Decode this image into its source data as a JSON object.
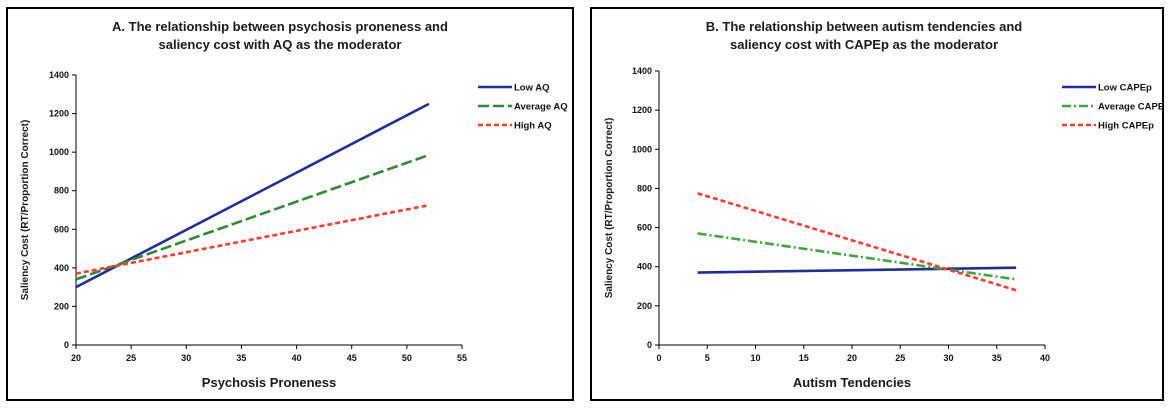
{
  "chart_data": [
    {
      "type": "line",
      "title": "A. The relationship between psychosis proneness and saliency cost with AQ as the moderator",
      "title_lines": [
        "A. The relationship between psychosis proneness and",
        "saliency cost with AQ as the moderator"
      ],
      "xlabel": "Psychosis Proneness",
      "ylabel": "Saliency Cost (RT/Proportion Correct)",
      "xlim": [
        20,
        55
      ],
      "ylim": [
        0,
        1400
      ],
      "xticks": [
        20,
        25,
        30,
        35,
        40,
        45,
        50,
        55
      ],
      "yticks": [
        0,
        200,
        400,
        600,
        800,
        1000,
        1200,
        1400
      ],
      "legend_position": "top-right",
      "series": [
        {
          "name": "Low AQ",
          "color": "#1f2e9c",
          "dash": "solid",
          "x": [
            20,
            52
          ],
          "y": [
            300,
            1250
          ]
        },
        {
          "name": "Average AQ",
          "color": "#2e8b2e",
          "dash": "longdash",
          "x": [
            20,
            52
          ],
          "y": [
            340,
            985
          ]
        },
        {
          "name": "High AQ",
          "color": "#ff3b30",
          "dash": "shortdash",
          "x": [
            20,
            52
          ],
          "y": [
            370,
            725
          ]
        }
      ]
    },
    {
      "type": "line",
      "title": "B. The relationship between autism tendencies and saliency cost with CAPEp as the moderator",
      "title_lines": [
        "B. The relationship between autism tendencies and",
        "saliency cost with CAPEp as the moderator"
      ],
      "xlabel": "Autism Tendencies",
      "ylabel": "Saliency Cost (RT/Proportion Correct)",
      "xlim": [
        0,
        40
      ],
      "ylim": [
        0,
        1400
      ],
      "xticks": [
        0,
        5,
        10,
        15,
        20,
        25,
        30,
        35,
        40
      ],
      "yticks": [
        0,
        200,
        400,
        600,
        800,
        1000,
        1200,
        1400
      ],
      "legend_position": "top-right",
      "series": [
        {
          "name": "Low CAPEp",
          "color": "#1f2e9c",
          "dash": "solid",
          "x": [
            4,
            37
          ],
          "y": [
            370,
            395
          ]
        },
        {
          "name": "Average CAPEp",
          "color": "#3aa83a",
          "dash": "dashdot",
          "x": [
            4,
            37
          ],
          "y": [
            570,
            335
          ]
        },
        {
          "name": "High CAPEp",
          "color": "#ff3b30",
          "dash": "shortdash",
          "x": [
            4,
            37
          ],
          "y": [
            775,
            280
          ]
        }
      ]
    }
  ]
}
